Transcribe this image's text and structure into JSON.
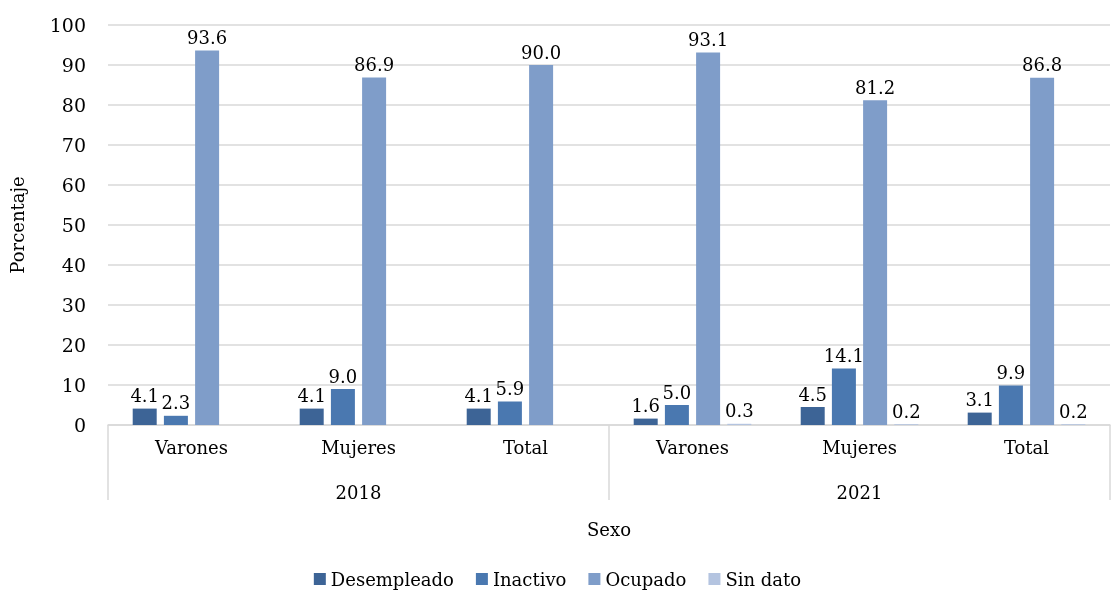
{
  "chart_data": {
    "type": "bar",
    "categories": [
      "Varones",
      "Mujeres",
      "Total",
      "Varones",
      "Mujeres",
      "Total"
    ],
    "annotations": [
      "2018",
      "2021"
    ],
    "xlabel": "Sexo",
    "ylabel": "Porcentaje",
    "series": [
      {
        "name": "Desempleado",
        "color": "#3d6496",
        "values": [
          4.1,
          4.1,
          4.1,
          1.6,
          4.5,
          3.1
        ],
        "value_labels": [
          "4.1",
          "4.1",
          "4.1",
          "1.6",
          "4.5",
          "3.1"
        ]
      },
      {
        "name": "Inactivo",
        "color": "#4a78b0",
        "values": [
          2.3,
          9.0,
          5.9,
          5.0,
          14.1,
          9.9
        ],
        "value_labels": [
          "2.3",
          "9.0",
          "5.9",
          "5.0",
          "14.1",
          "9.9"
        ]
      },
      {
        "name": "Ocupado",
        "color": "#7f9dc9",
        "values": [
          93.6,
          86.9,
          90.0,
          93.1,
          81.2,
          86.8
        ],
        "value_labels": [
          "93.6",
          "86.9",
          "90.0",
          "93.1",
          "81.2",
          "86.8"
        ]
      },
      {
        "name": "Sin dato",
        "color": "#b4c4e0",
        "values": [
          null,
          null,
          null,
          0.3,
          0.2,
          0.2
        ],
        "value_labels": [
          null,
          null,
          null,
          "0.3",
          "0.2",
          "0.2"
        ]
      }
    ],
    "ylim": [
      0,
      100
    ],
    "yticks": [
      0,
      10,
      20,
      30,
      40,
      50,
      60,
      70,
      80,
      90,
      100
    ],
    "grid": "y",
    "legend": "bottom"
  }
}
